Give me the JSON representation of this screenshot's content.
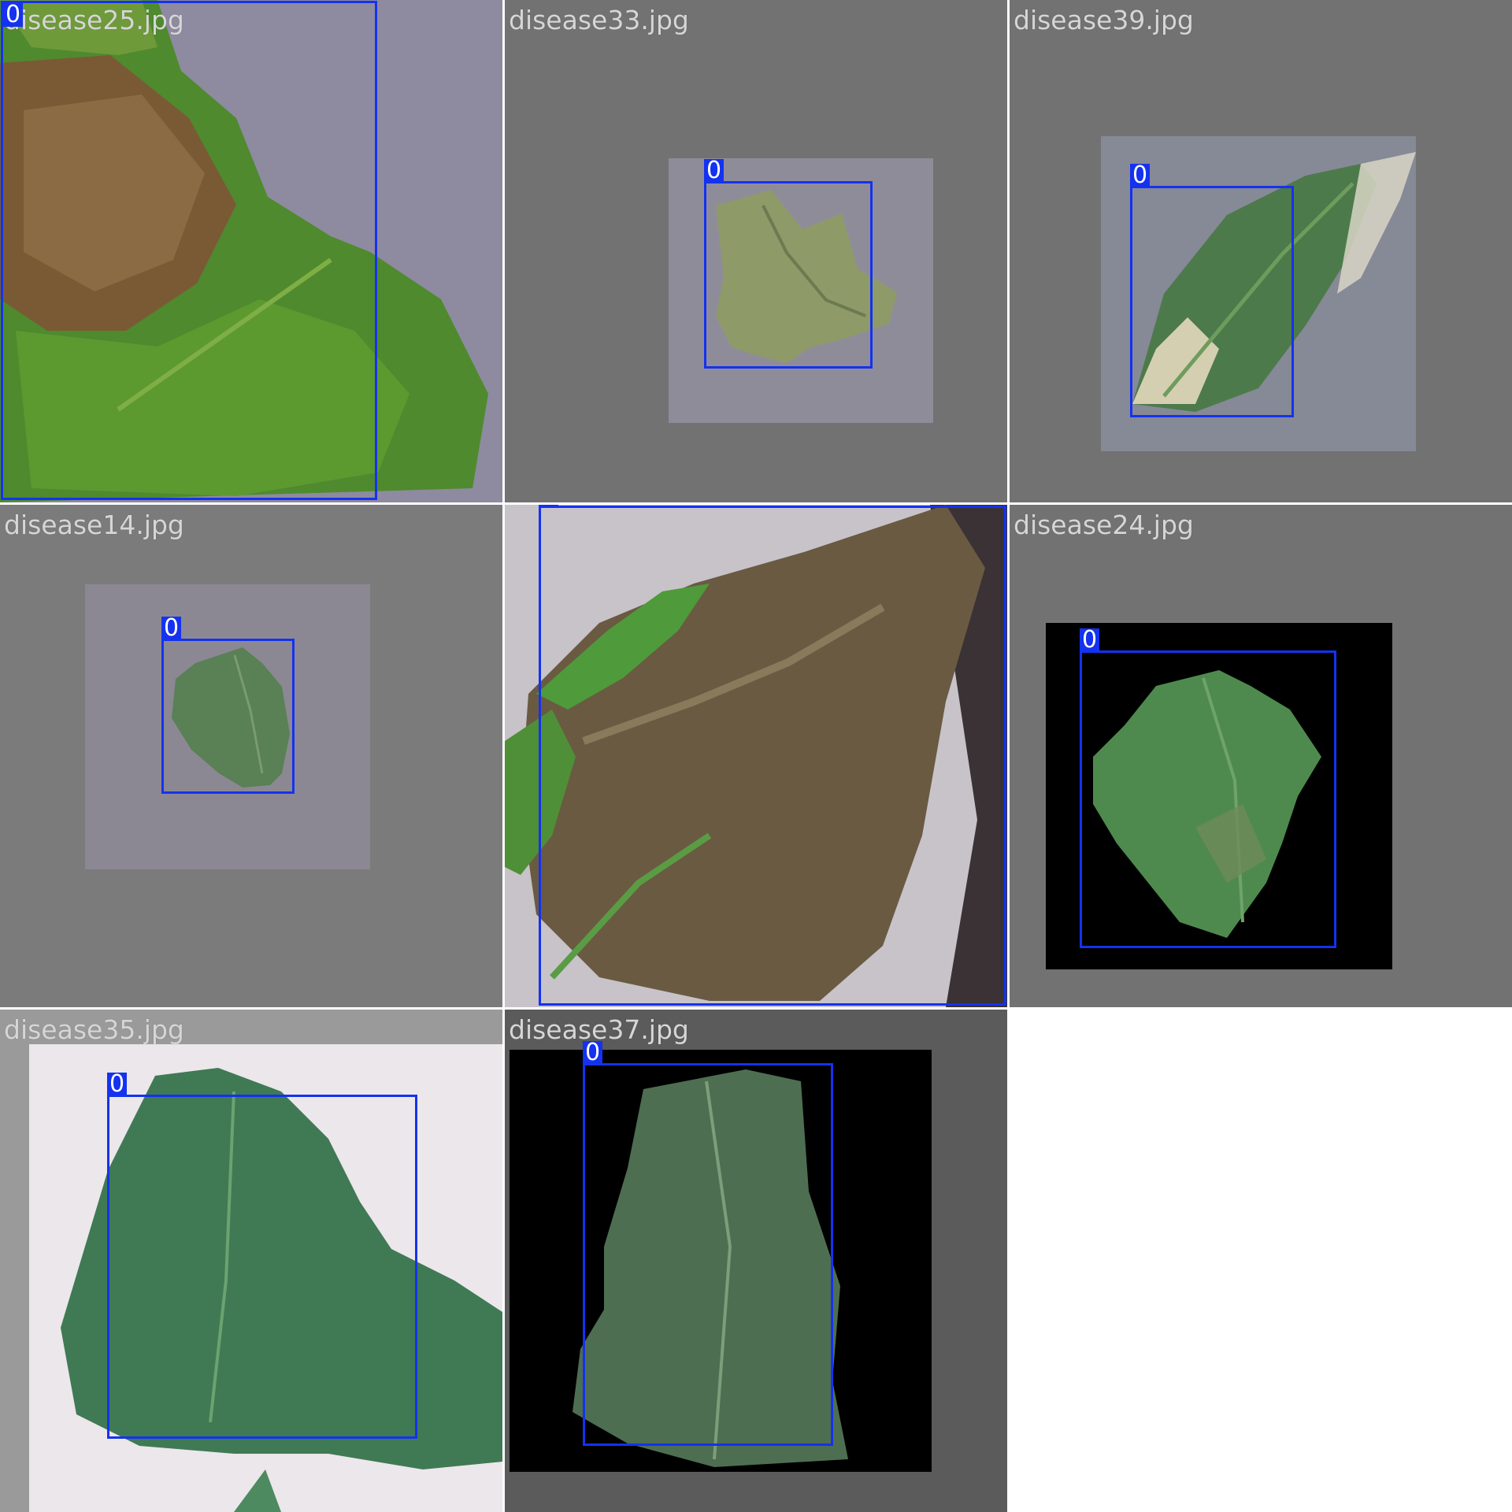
{
  "tiles": [
    {
      "filename": "disease25.jpg",
      "class_label": "0"
    },
    {
      "filename": "disease33.jpg",
      "class_label": "0"
    },
    {
      "filename": "disease39.jpg",
      "class_label": "0"
    },
    {
      "filename": "disease14.jpg",
      "class_label": "0"
    },
    {
      "filename": "",
      "class_label": "0"
    },
    {
      "filename": "disease24.jpg",
      "class_label": "0"
    },
    {
      "filename": "disease35.jpg",
      "class_label": "0"
    },
    {
      "filename": "disease37.jpg",
      "class_label": "0"
    }
  ],
  "colors": {
    "bbox": "#1432f0",
    "padding_gray": "#727272",
    "filename_text": "#d6d6d6"
  }
}
